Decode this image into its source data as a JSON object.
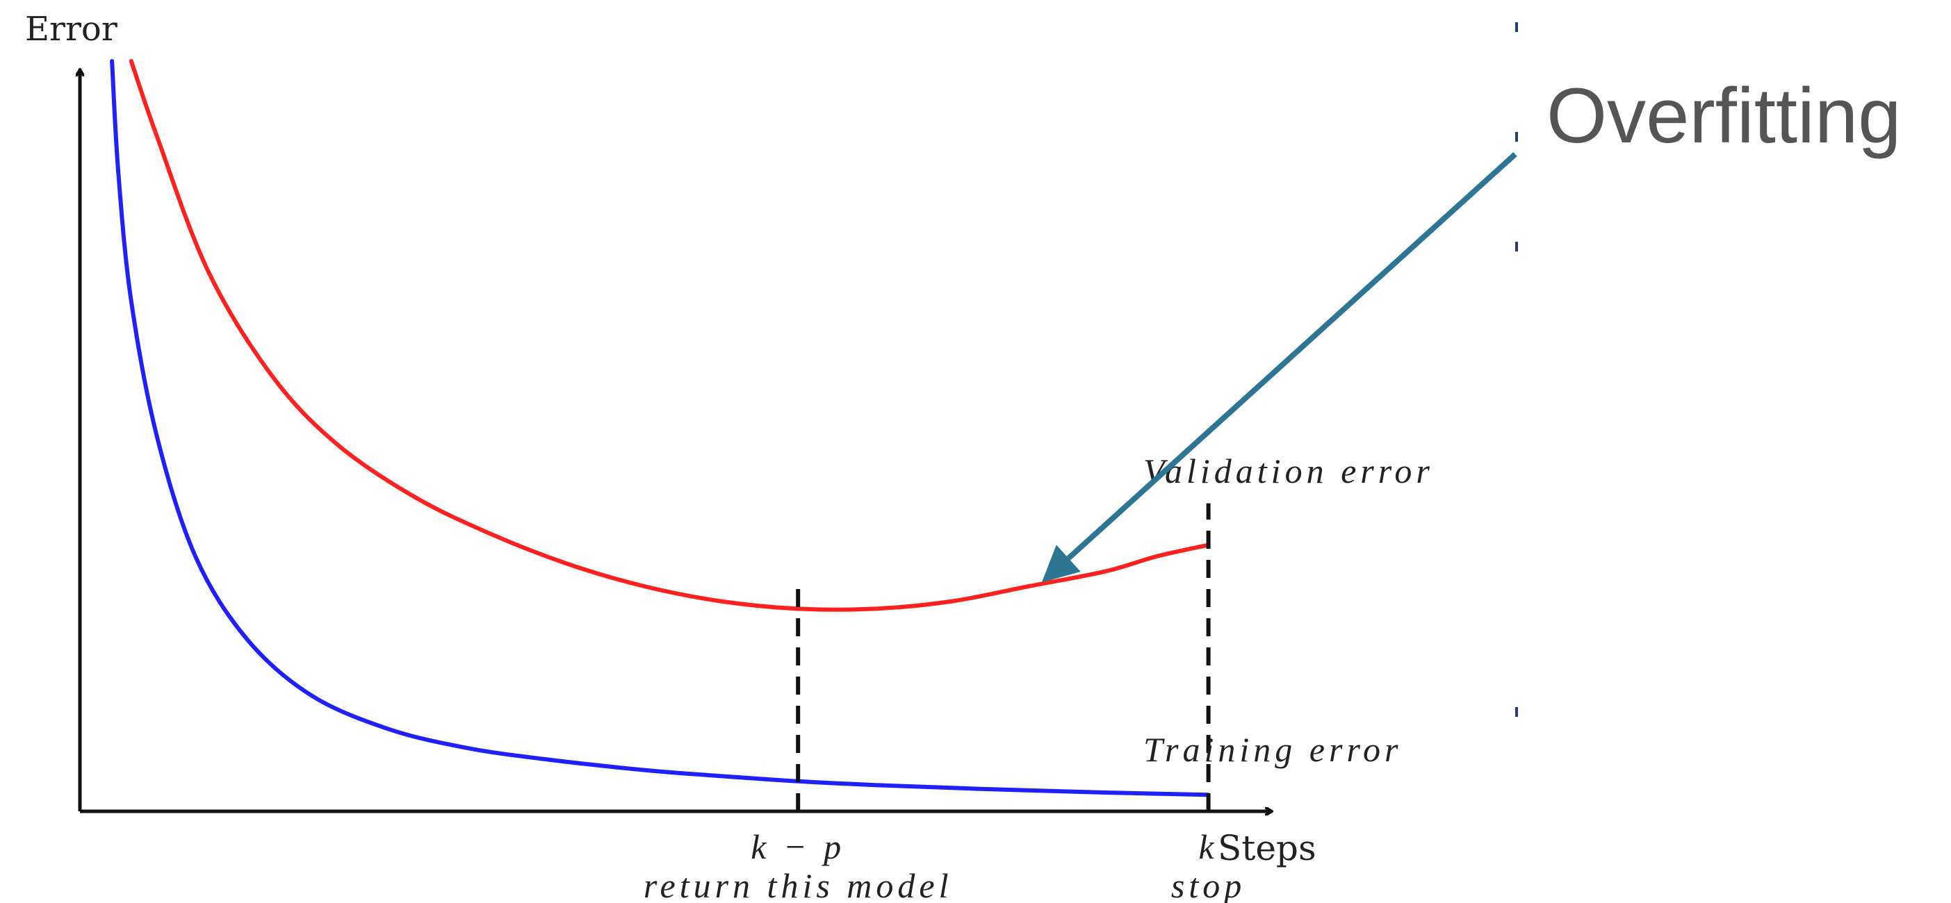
{
  "chart_data": {
    "type": "line",
    "ylabel": "Error",
    "xlabel": "Steps",
    "grid": false,
    "legend": "none",
    "x_ticks": [
      {
        "value": 0.56,
        "label": "k − p",
        "sublabel": "return this model"
      },
      {
        "value": 0.88,
        "label": "k",
        "sublabel": "stop"
      }
    ],
    "series": [
      {
        "name": "Validation error",
        "color": "#ff2020",
        "x": [
          0.04,
          0.06,
          0.1,
          0.15,
          0.2,
          0.26,
          0.32,
          0.38,
          0.44,
          0.5,
          0.56,
          0.62,
          0.68,
          0.74,
          0.8,
          0.84,
          0.88
        ],
        "y": [
          1.0,
          0.9,
          0.72,
          0.58,
          0.49,
          0.42,
          0.37,
          0.33,
          0.3,
          0.28,
          0.27,
          0.27,
          0.28,
          0.3,
          0.32,
          0.34,
          0.355
        ]
      },
      {
        "name": "Training error",
        "color": "#2020ff",
        "x": [
          0.025,
          0.03,
          0.04,
          0.06,
          0.09,
          0.13,
          0.18,
          0.24,
          0.3,
          0.36,
          0.44,
          0.5,
          0.56,
          0.62,
          0.7,
          0.8,
          0.88
        ],
        "y": [
          1.0,
          0.85,
          0.68,
          0.5,
          0.34,
          0.23,
          0.155,
          0.11,
          0.085,
          0.07,
          0.055,
          0.047,
          0.04,
          0.035,
          0.03,
          0.025,
          0.022
        ]
      }
    ],
    "stop_lines": [
      0.56,
      0.88
    ],
    "annotation": {
      "text": "Overfitting",
      "color": "#2e7593",
      "points_to": {
        "x": 0.75,
        "y": 0.305
      }
    }
  }
}
